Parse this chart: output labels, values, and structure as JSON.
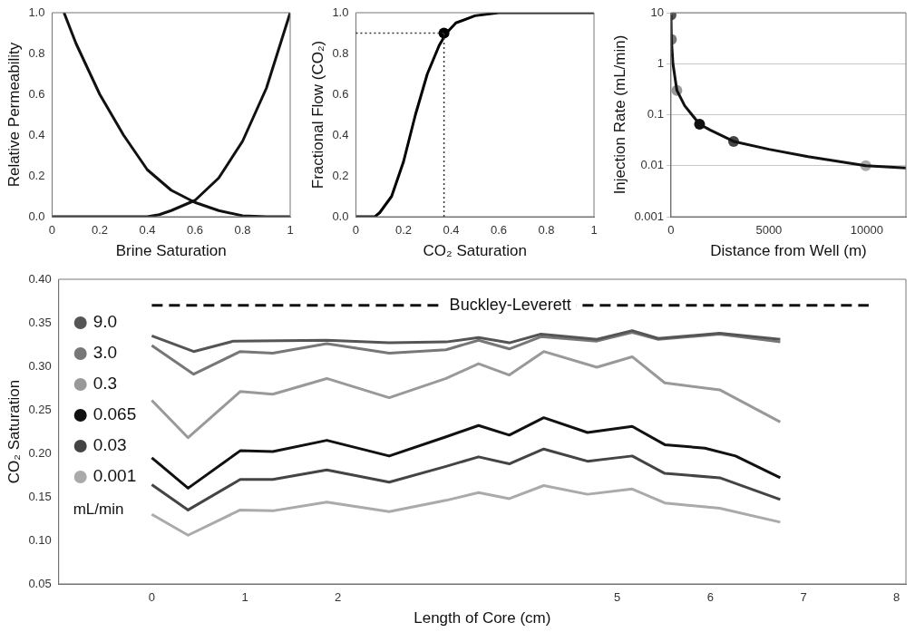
{
  "chart_data": [
    {
      "type": "line",
      "xlabel": "Brine Saturation",
      "ylabel": "Relative Permeability",
      "xlim": [
        0,
        1
      ],
      "xticks": [
        0,
        0.2,
        0.4,
        0.6,
        0.8,
        1
      ],
      "ylim": [
        0,
        1
      ],
      "yticks": [
        {
          "value": 0,
          "label": "0.0"
        },
        0.2,
        0.4,
        0.6,
        0.8,
        {
          "value": 1,
          "label": "1.0"
        }
      ],
      "series": [
        {
          "color": "#111111",
          "x": [
            0.05,
            0.1,
            0.2,
            0.3,
            0.4,
            0.5,
            0.6,
            0.7,
            0.8,
            0.9,
            1
          ],
          "values": [
            1,
            0.85,
            0.6,
            0.4,
            0.23,
            0.13,
            0.07,
            0.03,
            0.005,
            0,
            0
          ]
        },
        {
          "color": "#111111",
          "x": [
            0,
            0.4,
            0.45,
            0.5,
            0.6,
            0.7,
            0.8,
            0.9,
            1
          ],
          "values": [
            0,
            0,
            0.01,
            0.03,
            0.08,
            0.19,
            0.37,
            0.63,
            1
          ]
        }
      ]
    },
    {
      "type": "line",
      "xlabel": "CO₂ Saturation",
      "ylabel": "Fractional Flow (CO₂)",
      "xlim": [
        0,
        1
      ],
      "xticks": [
        0,
        0.2,
        0.4,
        0.6,
        0.8,
        1
      ],
      "ylim": [
        0,
        1
      ],
      "yticks": [
        {
          "value": 0,
          "label": "0.0"
        },
        0.2,
        0.4,
        0.6,
        0.8,
        {
          "value": 1,
          "label": "1.0"
        }
      ],
      "ref_lines": [
        {
          "axis": "x",
          "value": 0.37,
          "line_style": "dotted",
          "color": "#333333"
        },
        {
          "axis": "y",
          "value": 0.9,
          "line_style": "dotted",
          "color": "#333333"
        }
      ],
      "series": [
        {
          "color": "#000000",
          "x": [
            0,
            0.08,
            0.1,
            0.15,
            0.2,
            0.25,
            0.3,
            0.35,
            0.38,
            0.42,
            0.5,
            0.6,
            1
          ],
          "values": [
            0,
            0,
            0.02,
            0.1,
            0.27,
            0.5,
            0.7,
            0.84,
            0.9,
            0.95,
            0.985,
            1,
            1
          ]
        },
        {
          "type": "scatter",
          "marker": "circle",
          "color": "#000000",
          "x": [
            0.37
          ],
          "values": [
            0.9
          ]
        }
      ]
    },
    {
      "type": "line",
      "xlabel": "Distance from Well (m)",
      "ylabel": "Injection Rate (mL/min)",
      "log": "y",
      "grid": "y",
      "xlim": [
        0,
        12000
      ],
      "xticks": [
        0,
        5000,
        10000
      ],
      "ylim": [
        0.001,
        10
      ],
      "yticks": [
        0.001,
        0.01,
        0.1,
        1,
        10
      ],
      "series": [
        {
          "color": "#111111",
          "x": [
            0,
            20,
            100,
            300,
            700,
            1460,
            2000,
            3200,
            5000,
            7000,
            9950,
            12000
          ],
          "values": [
            9,
            3,
            1,
            0.3,
            0.15,
            0.065,
            0.05,
            0.03,
            0.021,
            0.015,
            0.01,
            0.009
          ]
        },
        {
          "type": "scatter",
          "marker": "circle",
          "colors": [
            "#555555",
            "#777777",
            "#999999",
            "#111111",
            "#444444",
            "#aaaaaa"
          ],
          "x": [
            0,
            20,
            300,
            1460,
            3200,
            9950
          ],
          "values": [
            9,
            3,
            0.3,
            0.065,
            0.03,
            0.01
          ]
        }
      ]
    },
    {
      "type": "line",
      "xlabel": "Length of Core (cm)",
      "ylabel": "CO₂ Saturation",
      "legend": "left",
      "legend_title": "mL/min",
      "xlim": [
        -1,
        8.1
      ],
      "xticks": [
        0,
        1,
        2,
        5,
        6,
        7,
        8
      ],
      "ylim": [
        0.05,
        0.4
      ],
      "yticks": [
        0.05,
        {
          "value": 0.1,
          "label": "0.10"
        },
        0.15,
        {
          "value": 0.2,
          "label": "0.20"
        },
        0.25,
        {
          "value": 0.3,
          "label": "0.30"
        },
        0.35,
        {
          "value": 0.4,
          "label": "0.40"
        }
      ],
      "series": [
        {
          "name": "Buckley-Leverett",
          "color": "#111111",
          "line_style": "dashed",
          "x": [
            0,
            7.7
          ],
          "values": [
            0.37,
            0.37
          ]
        },
        {
          "name": "9.0",
          "color": "#555555",
          "x": [
            0,
            0.45,
            0.88,
            1.88,
            2.55,
            3.16,
            3.51,
            3.84,
            4.18,
            4.78,
            5.16,
            5.44,
            6.1,
            6.75
          ],
          "values": [
            0.335,
            0.317,
            0.329,
            0.33,
            0.327,
            0.328,
            0.333,
            0.327,
            0.337,
            0.331,
            0.341,
            0.332,
            0.338,
            0.331
          ]
        },
        {
          "name": "3.0",
          "color": "#777777",
          "x": [
            0,
            0.45,
            0.95,
            1.3,
            1.88,
            2.55,
            3.16,
            3.51,
            3.84,
            4.18,
            4.78,
            5.16,
            5.44,
            6.1,
            6.75
          ],
          "values": [
            0.324,
            0.291,
            0.317,
            0.315,
            0.326,
            0.315,
            0.319,
            0.33,
            0.32,
            0.334,
            0.329,
            0.339,
            0.331,
            0.337,
            0.328
          ]
        },
        {
          "name": "0.3",
          "color": "#999999",
          "x": [
            0,
            0.39,
            0.95,
            1.3,
            1.88,
            2.55,
            3.16,
            3.51,
            3.84,
            4.21,
            4.78,
            5.16,
            5.51,
            6.1,
            6.75
          ],
          "values": [
            0.261,
            0.218,
            0.271,
            0.268,
            0.286,
            0.264,
            0.286,
            0.303,
            0.29,
            0.317,
            0.299,
            0.311,
            0.281,
            0.273,
            0.236
          ]
        },
        {
          "name": "0.065",
          "color": "#111111",
          "x": [
            0,
            0.39,
            0.95,
            1.3,
            1.88,
            2.55,
            3.16,
            3.51,
            3.84,
            4.21,
            4.68,
            5.16,
            5.51,
            5.94,
            6.27,
            6.75
          ],
          "values": [
            0.195,
            0.16,
            0.203,
            0.202,
            0.215,
            0.197,
            0.219,
            0.232,
            0.221,
            0.241,
            0.224,
            0.231,
            0.21,
            0.206,
            0.197,
            0.172
          ]
        },
        {
          "name": "0.03",
          "color": "#444444",
          "x": [
            0,
            0.39,
            0.95,
            1.3,
            1.88,
            2.55,
            3.16,
            3.51,
            3.84,
            4.21,
            4.68,
            5.16,
            5.51,
            6.1,
            6.75
          ],
          "values": [
            0.164,
            0.135,
            0.17,
            0.17,
            0.181,
            0.167,
            0.185,
            0.196,
            0.188,
            0.205,
            0.191,
            0.197,
            0.177,
            0.172,
            0.147
          ]
        },
        {
          "name": "0.001",
          "color": "#aaaaaa",
          "x": [
            0,
            0.39,
            0.95,
            1.3,
            1.88,
            2.55,
            3.16,
            3.51,
            3.84,
            4.21,
            4.68,
            5.16,
            5.51,
            6.1,
            6.75
          ],
          "values": [
            0.13,
            0.106,
            0.135,
            0.134,
            0.144,
            0.133,
            0.146,
            0.155,
            0.148,
            0.163,
            0.153,
            0.159,
            0.143,
            0.137,
            0.121
          ]
        }
      ]
    }
  ]
}
